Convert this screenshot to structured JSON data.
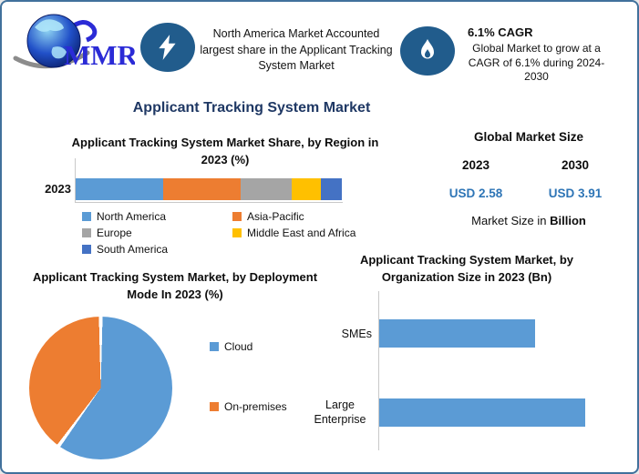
{
  "header": {
    "logo_text": "MMR",
    "callout_region": {
      "text": "North America Market Accounted largest share in the Applicant Tracking System Market"
    },
    "callout_cagr": {
      "heading": "6.1% CAGR",
      "body": "Global Market to grow at a CAGR of 6.1% during 2024-2030"
    }
  },
  "title": "Applicant Tracking System Market",
  "market_size": {
    "heading": "Global Market Size",
    "year_start": "2023",
    "year_end": "2030",
    "value_start": "USD 2.58",
    "value_end": "USD 3.91",
    "note_prefix": "Market Size in ",
    "note_bold": "Billion"
  },
  "colors": {
    "title_navy": "#1F3864",
    "value_blue": "#2E75B6",
    "icon_ellipse_blue": "#215C8C",
    "page_border": "#41719C",
    "axis_gray": "#C9C9C9"
  },
  "chart_data": [
    {
      "type": "bar",
      "stacked": true,
      "orientation": "horizontal",
      "title": "Applicant Tracking System Market Share, by Region in 2023 (%)",
      "categories": [
        "2023"
      ],
      "series": [
        {
          "name": "North America",
          "value": 33,
          "color": "#5B9BD5"
        },
        {
          "name": "Asia-Pacific",
          "value": 29,
          "color": "#ED7D31"
        },
        {
          "name": "Europe",
          "value": 19,
          "color": "#A5A5A5"
        },
        {
          "name": "Middle East and Africa",
          "value": 11,
          "color": "#FFC000"
        },
        {
          "name": "South America",
          "value": 8,
          "color": "#4472C4"
        }
      ],
      "unit": "%",
      "xlim": [
        0,
        100
      ],
      "grid": false,
      "legend_position": "bottom"
    },
    {
      "type": "pie",
      "title": "Applicant Tracking System Market, by Deployment Mode In 2023 (%)",
      "labels": [
        "Cloud",
        "On-premises"
      ],
      "values": [
        60,
        40
      ],
      "colors": [
        "#5B9BD5",
        "#ED7D31"
      ],
      "unit": "%",
      "start_angle_deg": 0,
      "legend_position": "right"
    },
    {
      "type": "bar",
      "orientation": "horizontal",
      "title": "Applicant Tracking System Market, by Organization Size in 2023 (Bn)",
      "categories": [
        "SMEs",
        "Large Enterprise"
      ],
      "values": [
        1.11,
        1.47
      ],
      "color": "#5B9BD5",
      "unit": "Bn",
      "xlim": [
        0,
        1.8
      ],
      "grid": false
    }
  ]
}
